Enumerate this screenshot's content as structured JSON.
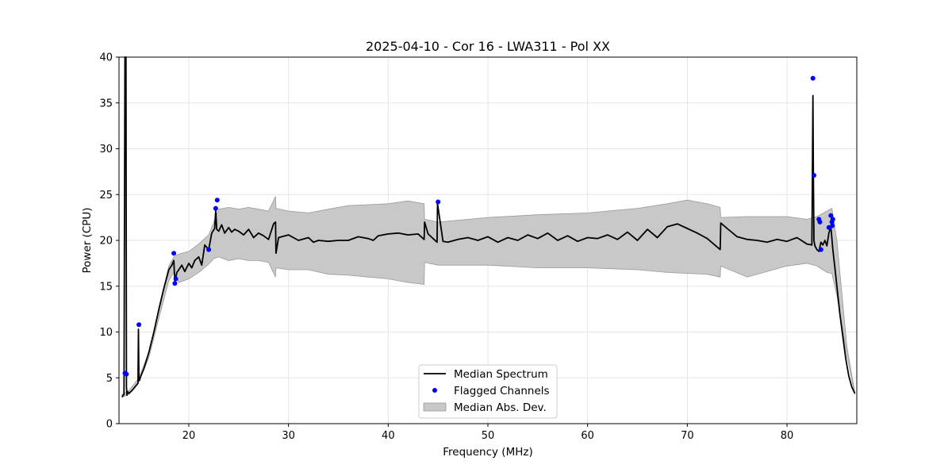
{
  "chart_data": {
    "type": "line",
    "title": "2025-04-10 - Cor 16 - LWA311 - Pol XX",
    "xlabel": "Frequency (MHz)",
    "ylabel": "Power (CPU)",
    "xlim": [
      13,
      87
    ],
    "ylim": [
      0,
      40
    ],
    "xticks": [
      20,
      30,
      40,
      50,
      60,
      70,
      80
    ],
    "yticks": [
      0,
      5,
      10,
      15,
      20,
      25,
      30,
      35,
      40
    ],
    "grid": true,
    "legend_position": "lower-center",
    "legend": [
      "Median Spectrum",
      "Flagged Channels",
      "Median Abs. Dev."
    ],
    "colors": {
      "line": "#000000",
      "flagged": "#0000ff",
      "band_fill": "#c8c8c8",
      "band_edge": "#999999",
      "grid": "#e6e6e6"
    },
    "series": [
      {
        "name": "Median Spectrum",
        "x": [
          13.3,
          13.5,
          13.6,
          13.7,
          13.75,
          13.8,
          13.85,
          14.0,
          14.3,
          14.6,
          14.9,
          14.95,
          15.0,
          15.05,
          15.2,
          15.5,
          16.0,
          16.5,
          17.0,
          17.5,
          18.0,
          18.3,
          18.5,
          18.6,
          18.8,
          19.0,
          19.3,
          19.6,
          20.0,
          20.3,
          20.6,
          21.0,
          21.3,
          21.6,
          22.0,
          22.3,
          22.6,
          22.7,
          22.8,
          23.0,
          23.3,
          23.6,
          24.0,
          24.3,
          24.6,
          25.0,
          25.5,
          26.0,
          26.5,
          27.0,
          27.5,
          28.0,
          28.5,
          28.7,
          28.75,
          29.0,
          30.0,
          31.0,
          32.0,
          32.5,
          33.0,
          34.0,
          35.0,
          36.0,
          37.0,
          38.0,
          38.5,
          39.0,
          40.0,
          41.0,
          42.0,
          43.0,
          43.6,
          43.65,
          44.0,
          44.9,
          44.95,
          45.5,
          46.0,
          47.0,
          48.0,
          49.0,
          50.0,
          51.0,
          52.0,
          53.0,
          54.0,
          55.0,
          56.0,
          57.0,
          58.0,
          59.0,
          60.0,
          61.0,
          62.0,
          63.0,
          64.0,
          65.0,
          66.0,
          67.0,
          68.0,
          69.0,
          70.0,
          71.0,
          72.0,
          73.3,
          73.35,
          74.0,
          75.0,
          76.0,
          77.0,
          78.0,
          79.0,
          80.0,
          81.0,
          82.0,
          82.5,
          82.6,
          82.65,
          82.7,
          82.8,
          83.0,
          83.2,
          83.4,
          83.6,
          83.8,
          84.0,
          84.2,
          84.4,
          84.6,
          84.8,
          85.0,
          85.3,
          85.6,
          85.9,
          86.2,
          86.5,
          86.8
        ],
        "values": [
          2.9,
          3.2,
          40.0,
          40.0,
          4.0,
          3.1,
          3.5,
          3.3,
          3.6,
          4.0,
          4.4,
          10.3,
          5.0,
          4.7,
          5.2,
          6.0,
          7.8,
          10.0,
          12.5,
          14.8,
          16.8,
          17.3,
          17.8,
          15.4,
          16.5,
          16.8,
          17.3,
          16.6,
          17.5,
          17.0,
          17.8,
          18.2,
          17.3,
          19.5,
          19.0,
          20.8,
          21.3,
          23.3,
          21.2,
          21.0,
          21.7,
          20.8,
          21.4,
          20.9,
          21.2,
          21.0,
          20.6,
          21.2,
          20.3,
          20.8,
          20.5,
          20.1,
          21.8,
          22.0,
          18.6,
          20.3,
          20.6,
          20.0,
          20.3,
          19.8,
          20.0,
          19.9,
          20.0,
          20.0,
          20.4,
          20.2,
          20.0,
          20.5,
          20.7,
          20.8,
          20.6,
          20.7,
          20.1,
          22.0,
          20.7,
          19.8,
          24.0,
          19.9,
          19.8,
          20.1,
          20.3,
          20.0,
          20.4,
          19.8,
          20.3,
          20.0,
          20.6,
          20.2,
          20.8,
          20.0,
          20.5,
          19.9,
          20.3,
          20.2,
          20.6,
          20.1,
          20.9,
          20.0,
          21.2,
          20.3,
          21.5,
          21.8,
          21.3,
          20.8,
          20.2,
          19.0,
          21.9,
          21.3,
          20.4,
          20.1,
          20.0,
          19.8,
          20.1,
          19.9,
          20.3,
          19.6,
          19.5,
          35.8,
          27.0,
          20.0,
          19.4,
          19.0,
          18.8,
          19.8,
          19.5,
          20.0,
          19.4,
          20.8,
          21.5,
          19.0,
          17.0,
          15.0,
          12.0,
          9.5,
          7.0,
          5.2,
          4.0,
          3.3
        ]
      }
    ],
    "mad_band": {
      "x": [
        13.3,
        14.0,
        15.0,
        16.0,
        17.0,
        18.0,
        18.5,
        19.0,
        20.0,
        21.0,
        22.0,
        22.5,
        23.0,
        24.0,
        25.0,
        26.0,
        27.0,
        28.0,
        28.7,
        28.75,
        30.0,
        32.0,
        34.0,
        36.0,
        38.0,
        40.0,
        42.0,
        43.6,
        43.65,
        45.0,
        50.0,
        55.0,
        60.0,
        65.0,
        68.0,
        70.0,
        72.0,
        73.3,
        73.35,
        76.0,
        80.0,
        82.0,
        83.0,
        84.0,
        84.5,
        85.0,
        86.0,
        86.8
      ],
      "upper": [
        3.2,
        3.6,
        5.0,
        7.8,
        12.5,
        17.2,
        18.2,
        18.5,
        18.8,
        19.6,
        20.6,
        22.0,
        23.4,
        23.6,
        23.4,
        23.6,
        23.4,
        23.2,
        24.8,
        23.5,
        23.2,
        23.0,
        23.4,
        23.8,
        23.9,
        24.0,
        24.3,
        24.0,
        22.3,
        22.0,
        22.5,
        22.8,
        23.0,
        23.5,
        24.0,
        24.4,
        24.0,
        23.6,
        22.5,
        22.6,
        22.6,
        22.3,
        22.6,
        23.2,
        23.5,
        20.0,
        8.5,
        3.4
      ],
      "lower": [
        2.9,
        3.2,
        4.6,
        7.2,
        11.5,
        15.6,
        16.5,
        15.4,
        15.8,
        16.5,
        17.4,
        18.0,
        18.2,
        17.8,
        18.0,
        17.8,
        17.8,
        17.6,
        16.0,
        17.0,
        16.8,
        16.8,
        16.3,
        16.2,
        16.0,
        15.8,
        15.4,
        15.2,
        17.6,
        17.3,
        17.3,
        17.0,
        17.0,
        16.8,
        16.5,
        16.4,
        16.3,
        16.0,
        17.2,
        16.0,
        17.2,
        17.5,
        17.2,
        16.5,
        16.4,
        14.0,
        7.5,
        3.2
      ]
    },
    "flagged_channels": {
      "x": [
        13.6,
        13.75,
        15.0,
        18.5,
        18.6,
        18.7,
        22.0,
        22.7,
        22.85,
        45.0,
        82.6,
        82.7,
        83.2,
        83.3,
        83.4,
        84.2,
        84.4,
        84.5,
        84.55,
        84.6
      ],
      "y": [
        5.5,
        5.4,
        10.8,
        18.6,
        15.3,
        15.8,
        19.0,
        23.5,
        24.4,
        24.2,
        37.7,
        27.1,
        22.3,
        22.0,
        19.0,
        21.4,
        22.7,
        22.0,
        21.6,
        22.3
      ]
    }
  }
}
